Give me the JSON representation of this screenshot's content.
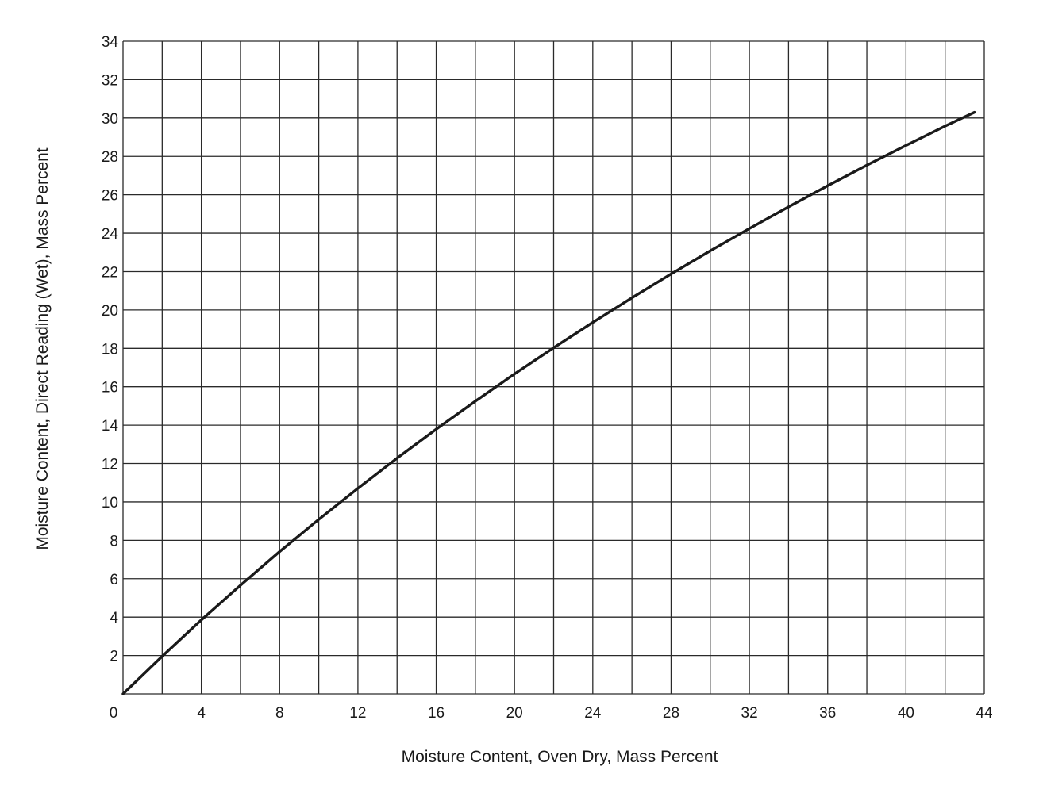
{
  "chart_data": {
    "type": "line",
    "title": "",
    "xlabel": "Moisture Content, Oven Dry, Mass Percent",
    "ylabel": "Moisture Content, Direct Reading (Wet), Mass Percent",
    "xlim": [
      0,
      44
    ],
    "ylim": [
      0,
      34
    ],
    "x_ticks": [
      0,
      4,
      8,
      12,
      16,
      20,
      24,
      28,
      32,
      36,
      40,
      44
    ],
    "y_ticks": [
      2,
      4,
      6,
      8,
      10,
      12,
      14,
      16,
      18,
      20,
      22,
      24,
      26,
      28,
      30,
      32,
      34
    ],
    "grid": true,
    "grid_x_step": 2,
    "grid_y_step": 2,
    "line_color": "#1a1a1a",
    "grid_color": "#2a2a2a",
    "series": [
      {
        "name": "",
        "x": [
          0,
          2,
          4,
          6,
          8,
          10,
          12,
          14,
          16,
          18,
          20,
          22,
          24,
          26,
          28,
          30,
          32,
          34,
          36,
          38,
          40,
          42,
          43.5
        ],
        "y": [
          0,
          1.96,
          3.85,
          5.66,
          7.41,
          9.09,
          10.71,
          12.28,
          13.79,
          15.25,
          16.67,
          18.03,
          19.35,
          20.63,
          21.88,
          23.08,
          24.24,
          25.37,
          26.47,
          27.54,
          28.57,
          29.58,
          30.3
        ]
      }
    ]
  }
}
